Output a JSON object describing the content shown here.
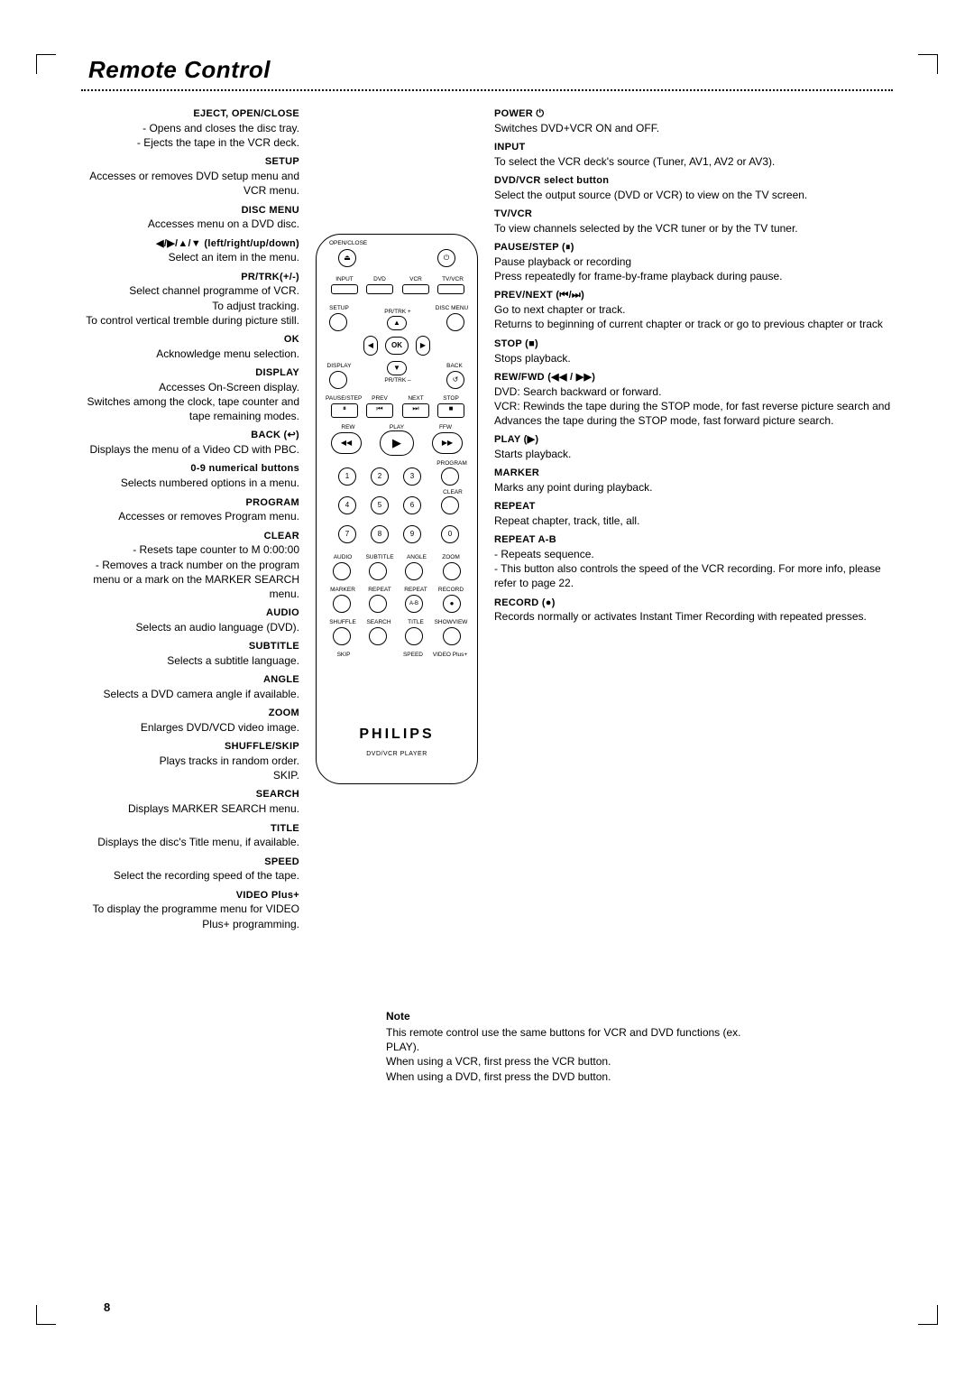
{
  "page": {
    "title": "Remote Control",
    "page_number": "8",
    "brand": "PHILIPS",
    "subbrand": "DVD/VCR PLAYER"
  },
  "left": [
    {
      "hd": "EJECT, OPEN/CLOSE",
      "desc": "- Opens and closes the disc tray.\n- Ejects the tape in the VCR deck."
    },
    {
      "hd": "SETUP",
      "desc": "Accesses or removes DVD setup menu and VCR menu."
    },
    {
      "hd": "DISC MENU",
      "desc": "Accesses menu on a DVD disc."
    },
    {
      "hd": "◀/▶/▲/▼ (left/right/up/down)",
      "desc": "Select an item in the menu."
    },
    {
      "hd": "PR/TRK(+/-)",
      "desc": "Select channel programme of VCR.\nTo adjust tracking.\nTo control vertical tremble during picture still."
    },
    {
      "hd": "OK",
      "desc": "Acknowledge menu selection."
    },
    {
      "hd": "DISPLAY",
      "desc": "Accesses On-Screen display.\nSwitches among the clock, tape counter and tape remaining modes."
    },
    {
      "hd": "BACK (↩)",
      "desc": "Displays the menu of a Video CD with PBC."
    },
    {
      "hd": "0-9 numerical buttons",
      "desc": "Selects numbered options in a menu."
    },
    {
      "hd": "PROGRAM",
      "desc": "Accesses or removes Program menu."
    },
    {
      "hd": "CLEAR",
      "desc": "- Resets tape counter to M 0:00:00\n- Removes a track number on the program menu or a mark on the MARKER SEARCH menu."
    },
    {
      "hd": "AUDIO",
      "desc": "Selects an audio language (DVD)."
    },
    {
      "hd": "SUBTITLE",
      "desc": "Selects a subtitle language."
    },
    {
      "hd": "ANGLE",
      "desc": "Selects a DVD camera angle if available."
    },
    {
      "hd": "ZOOM",
      "desc": "Enlarges DVD/VCD video image."
    },
    {
      "hd": "SHUFFLE/SKIP",
      "desc": "Plays tracks in random order.\nSKIP."
    },
    {
      "hd": "SEARCH",
      "desc": "Displays MARKER SEARCH menu."
    },
    {
      "hd": "TITLE",
      "desc": "Displays the disc's Title menu, if available."
    },
    {
      "hd": "SPEED",
      "desc": "Select the recording speed of the tape."
    },
    {
      "hd": "VIDEO Plus+",
      "desc": "To display the programme menu for VIDEO Plus+ programming."
    }
  ],
  "right": [
    {
      "hd": "POWER ⏻",
      "desc": "Switches DVD+VCR ON and OFF."
    },
    {
      "hd": "INPUT",
      "desc": "To select the VCR deck's source (Tuner, AV1, AV2 or AV3)."
    },
    {
      "hd": "DVD/VCR select button",
      "desc": "Select the output source (DVD or VCR) to view on the TV screen."
    },
    {
      "hd": "TV/VCR",
      "desc": "To view channels selected by the VCR tuner or by the TV tuner."
    },
    {
      "hd": "PAUSE/STEP (⏸)",
      "desc": "Pause playback or recording\nPress repeatedly for frame-by-frame playback during pause."
    },
    {
      "hd": "PREV/NEXT (⏮/⏭)",
      "desc": "Go to next chapter or track.\nReturns to beginning of current chapter or track or go to previous chapter or track"
    },
    {
      "hd": "STOP (■)",
      "desc": "Stops playback."
    },
    {
      "hd": "REW/FWD (◀◀ / ▶▶)",
      "desc": "DVD: Search backward or forward.\nVCR: Rewinds the tape during the STOP mode, for fast reverse picture search and Advances the tape during the STOP mode, fast forward picture search."
    },
    {
      "hd": "PLAY (▶)",
      "desc": "Starts playback."
    },
    {
      "hd": "MARKER",
      "desc": "Marks any point during playback."
    },
    {
      "hd": "REPEAT",
      "desc": "Repeat chapter, track, title, all."
    },
    {
      "hd": "REPEAT A-B",
      "desc": "- Repeats sequence.\n- This button also controls the speed of the VCR recording. For more info, please refer to page 22."
    },
    {
      "hd": "RECORD (●)",
      "desc": "Records normally or activates Instant Timer Recording with repeated presses."
    }
  ],
  "note": {
    "hd": "Note",
    "body": "This remote control use the same buttons for VCR and DVD functions (ex. PLAY).\nWhen using a VCR, first press the VCR button.\nWhen using a DVD, first press the DVD button."
  },
  "remote_labels": {
    "open": "OPEN/CLOSE",
    "input": "INPUT",
    "dvd": "DVD",
    "vcr": "VCR",
    "tvvcr": "TV/VCR",
    "setup": "SETUP",
    "discmenu": "DISC MENU",
    "prtrkp": "PR/TRK +",
    "prtrkm": "PR/TRK –",
    "ok": "OK",
    "display": "DISPLAY",
    "back": "BACK",
    "pause": "PAUSE/STEP",
    "prev": "PREV",
    "next": "NEXT",
    "stop": "STOP",
    "rew": "REW",
    "play": "PLAY",
    "ffw": "FFW",
    "program": "PROGRAM",
    "clear": "CLEAR",
    "audio": "AUDIO",
    "subtitle": "SUBTITLE",
    "angle": "ANGLE",
    "zoom": "ZOOM",
    "marker": "MARKER",
    "repeat": "REPEAT",
    "repeatab": "REPEAT",
    "record": "RECORD",
    "shuffle": "SHUFFLE",
    "search": "SEARCH",
    "title": "TITLE",
    "showview": "SHOWVIEW",
    "skip": "SKIP",
    "speed": "SPEED",
    "videoplus": "VIDEO Plus+",
    "ab": "A-B"
  }
}
